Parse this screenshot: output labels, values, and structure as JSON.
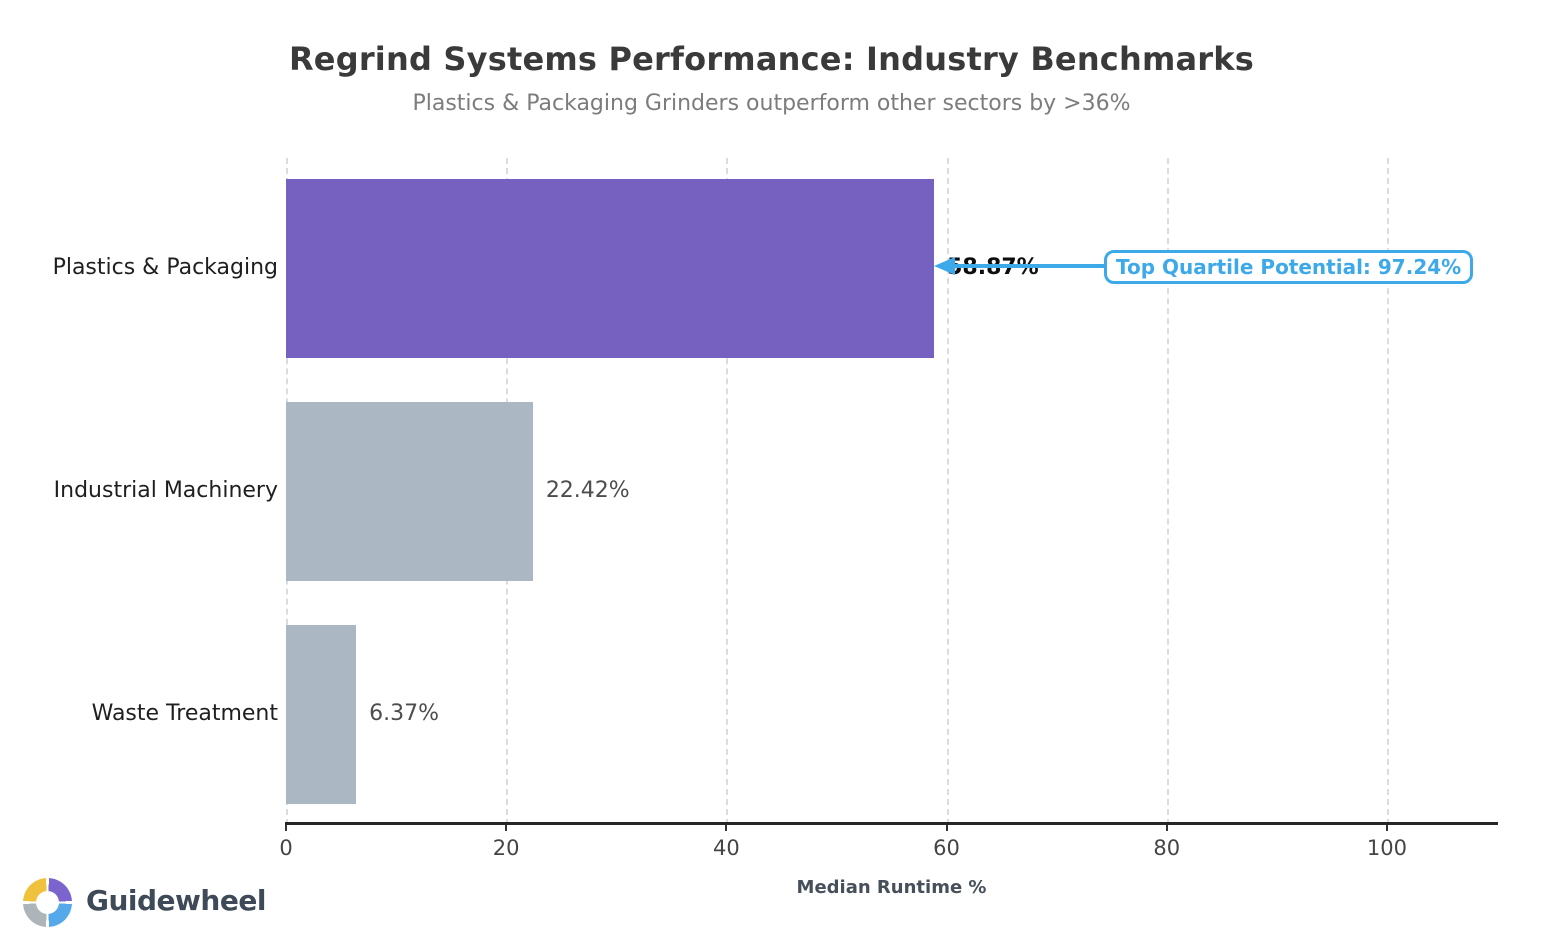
{
  "chart_data": {
    "type": "bar",
    "orientation": "horizontal",
    "title": "Regrind Systems Performance: Industry Benchmarks",
    "subtitle": "Plastics & Packaging Grinders outperform other sectors by >36%",
    "categories": [
      "Plastics & Packaging",
      "Industrial Machinery",
      "Waste Treatment"
    ],
    "values": [
      58.87,
      22.42,
      6.37
    ],
    "value_labels": [
      "58.87%",
      "22.42%",
      "6.37%"
    ],
    "xlabel": "Median Runtime %",
    "xlim": [
      0,
      110
    ],
    "xticks": [
      0,
      20,
      40,
      60,
      80,
      100
    ],
    "xtick_labels": [
      "0",
      "20",
      "40",
      "60",
      "80",
      "100"
    ],
    "grid": "vertical-dashed",
    "legend": false,
    "highlight_index": 0,
    "bar_colors": [
      "#7661c1",
      "#abb8c3",
      "#abb8c3"
    ],
    "annotation": {
      "text": "Top Quartile Potential: 97.24%",
      "value": 97.24,
      "target_category": "Plastics & Packaging",
      "color": "#3ea9e9"
    }
  },
  "branding": {
    "name": "Guidewheel"
  },
  "colors": {
    "highlight_purple": "#7661c1",
    "bar_gray": "#abb8c3",
    "annotation_blue": "#3ea9e9",
    "title_gray": "#3a3a3a",
    "subtitle_gray": "#7c7c7c"
  }
}
